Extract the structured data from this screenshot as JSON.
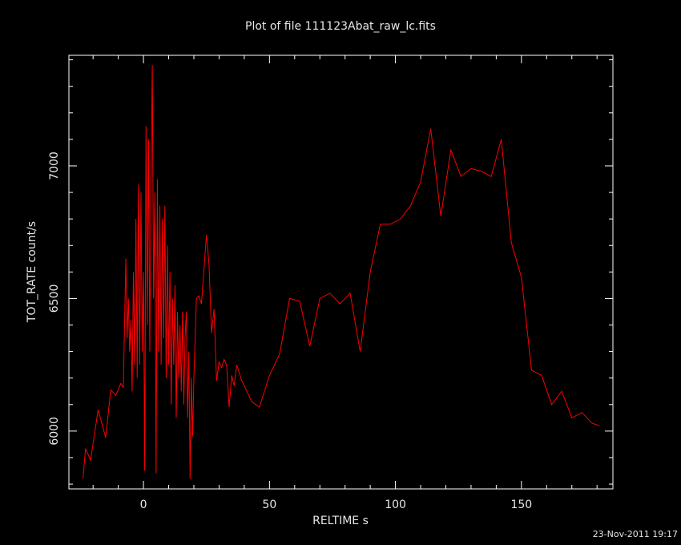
{
  "chart_data": {
    "type": "line",
    "title": "Plot of file 111123Abat_raw_lc.fits",
    "x_label": "RELTIME  s",
    "y_label": "TOT_RATE  count/s",
    "timestamp": "23-Nov-2011 19:17",
    "xlim": [
      -29.6,
      186.3
    ],
    "ylim": [
      5782,
      7417
    ],
    "xticks": [
      0,
      50,
      100,
      150
    ],
    "yticks": [
      6000,
      6500,
      7000
    ],
    "xminorticks": [
      -20,
      -10,
      10,
      20,
      30,
      40,
      60,
      70,
      80,
      90,
      110,
      120,
      130,
      140,
      160,
      170,
      180
    ],
    "yminorticks": [
      5800,
      5900,
      6100,
      6200,
      6300,
      6400,
      6600,
      6700,
      6800,
      6900,
      7100,
      7200,
      7300,
      7400
    ],
    "series": [
      {
        "name": "TOT_RATE",
        "color": "#ff0000",
        "x": [
          -24,
          -23,
          -21,
          -18,
          -15,
          -13,
          -11,
          -9,
          -8,
          -7,
          -6.5,
          -6,
          -5.5,
          -5,
          -4.5,
          -4,
          -3.5,
          -3,
          -2.5,
          -2,
          -1.5,
          -1,
          -0.5,
          0,
          0.5,
          1,
          1.5,
          2,
          2.5,
          3,
          3.5,
          4,
          4.5,
          5,
          5.5,
          6,
          6.5,
          7,
          7.5,
          8,
          8.5,
          9,
          9.5,
          10,
          10.5,
          11,
          11.5,
          12,
          12.5,
          13,
          13.5,
          14,
          14.5,
          15,
          15.5,
          16,
          16.5,
          17,
          17.5,
          18,
          18.5,
          19,
          19.5,
          20,
          21,
          22,
          23,
          25,
          26,
          27,
          28,
          29,
          30,
          31,
          32,
          33,
          34,
          35,
          36,
          37,
          39,
          43,
          46,
          50,
          54,
          58,
          62,
          66,
          70,
          74,
          78,
          82,
          86,
          90,
          94,
          98,
          102,
          106,
          110,
          114,
          118,
          122,
          126,
          130,
          134,
          138,
          142,
          146,
          150,
          154,
          158,
          162,
          166,
          170,
          174,
          178,
          181
        ],
        "values": [
          5822,
          5934,
          5890,
          6080,
          5975,
          6155,
          6135,
          6180,
          6165,
          6650,
          6350,
          6500,
          6300,
          6420,
          6150,
          6600,
          6250,
          6800,
          6200,
          6930,
          6250,
          6900,
          6300,
          6600,
          5850,
          7150,
          6400,
          7100,
          6300,
          6950,
          7380,
          6500,
          6900,
          5840,
          6950,
          6300,
          6850,
          6250,
          6800,
          6350,
          6850,
          6200,
          6700,
          6250,
          6600,
          6100,
          6500,
          6250,
          6550,
          6050,
          6450,
          6200,
          6400,
          6150,
          6450,
          6100,
          6350,
          6450,
          6050,
          6300,
          5820,
          6200,
          5980,
          6200,
          6500,
          6510,
          6480,
          6740,
          6630,
          6370,
          6460,
          6190,
          6260,
          6240,
          6270,
          6250,
          6090,
          6210,
          6170,
          6250,
          6190,
          6110,
          6090,
          6210,
          6290,
          6500,
          6490,
          6320,
          6500,
          6520,
          6480,
          6520,
          6300,
          6600,
          6780,
          6780,
          6800,
          6850,
          6940,
          7140,
          6810,
          7060,
          6960,
          6990,
          6980,
          6960,
          7100,
          6710,
          6580,
          6230,
          6210,
          6100,
          6150,
          6050,
          6070,
          6030,
          6020
        ]
      }
    ]
  }
}
